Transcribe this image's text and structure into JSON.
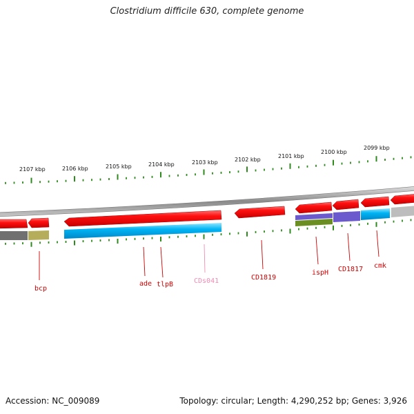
{
  "title": "Clostridium difficile 630, complete genome",
  "accession_text": "Accession: NC_009089",
  "topology_text": "Topology: circular; Length: 4,290,252 bp; Genes: 3,926",
  "colors": {
    "tick": "#2f8a1e",
    "backbone": "#8c8c8c",
    "cds_forward": "#ff0000",
    "cds_reverse": "#ff0000",
    "label_red": "#cc0000",
    "label_pink": "#f08cb4",
    "cog_blue": "#00b0f0",
    "cog_purple": "#6a5acd",
    "cog_olive": "#6b8e23",
    "cog_gray": "#777777",
    "cog_khaki": "#b5ad5a",
    "cog_lightgray": "#bdbdbd"
  },
  "ruler_labels": [
    "2107 kbp",
    "2106 kbp",
    "2105 kbp",
    "2104 kbp",
    "2103 kbp",
    "2102 kbp",
    "2101 kbp",
    "2100 kbp",
    "2099 kbp"
  ],
  "genes": [
    {
      "label": "bcp"
    },
    {
      "label": "ade"
    },
    {
      "label": "tlpB"
    },
    {
      "label": "CDs041"
    },
    {
      "label": "CD1819"
    },
    {
      "label": "ispH"
    },
    {
      "label": "CD1817"
    },
    {
      "label": "cmk"
    }
  ]
}
